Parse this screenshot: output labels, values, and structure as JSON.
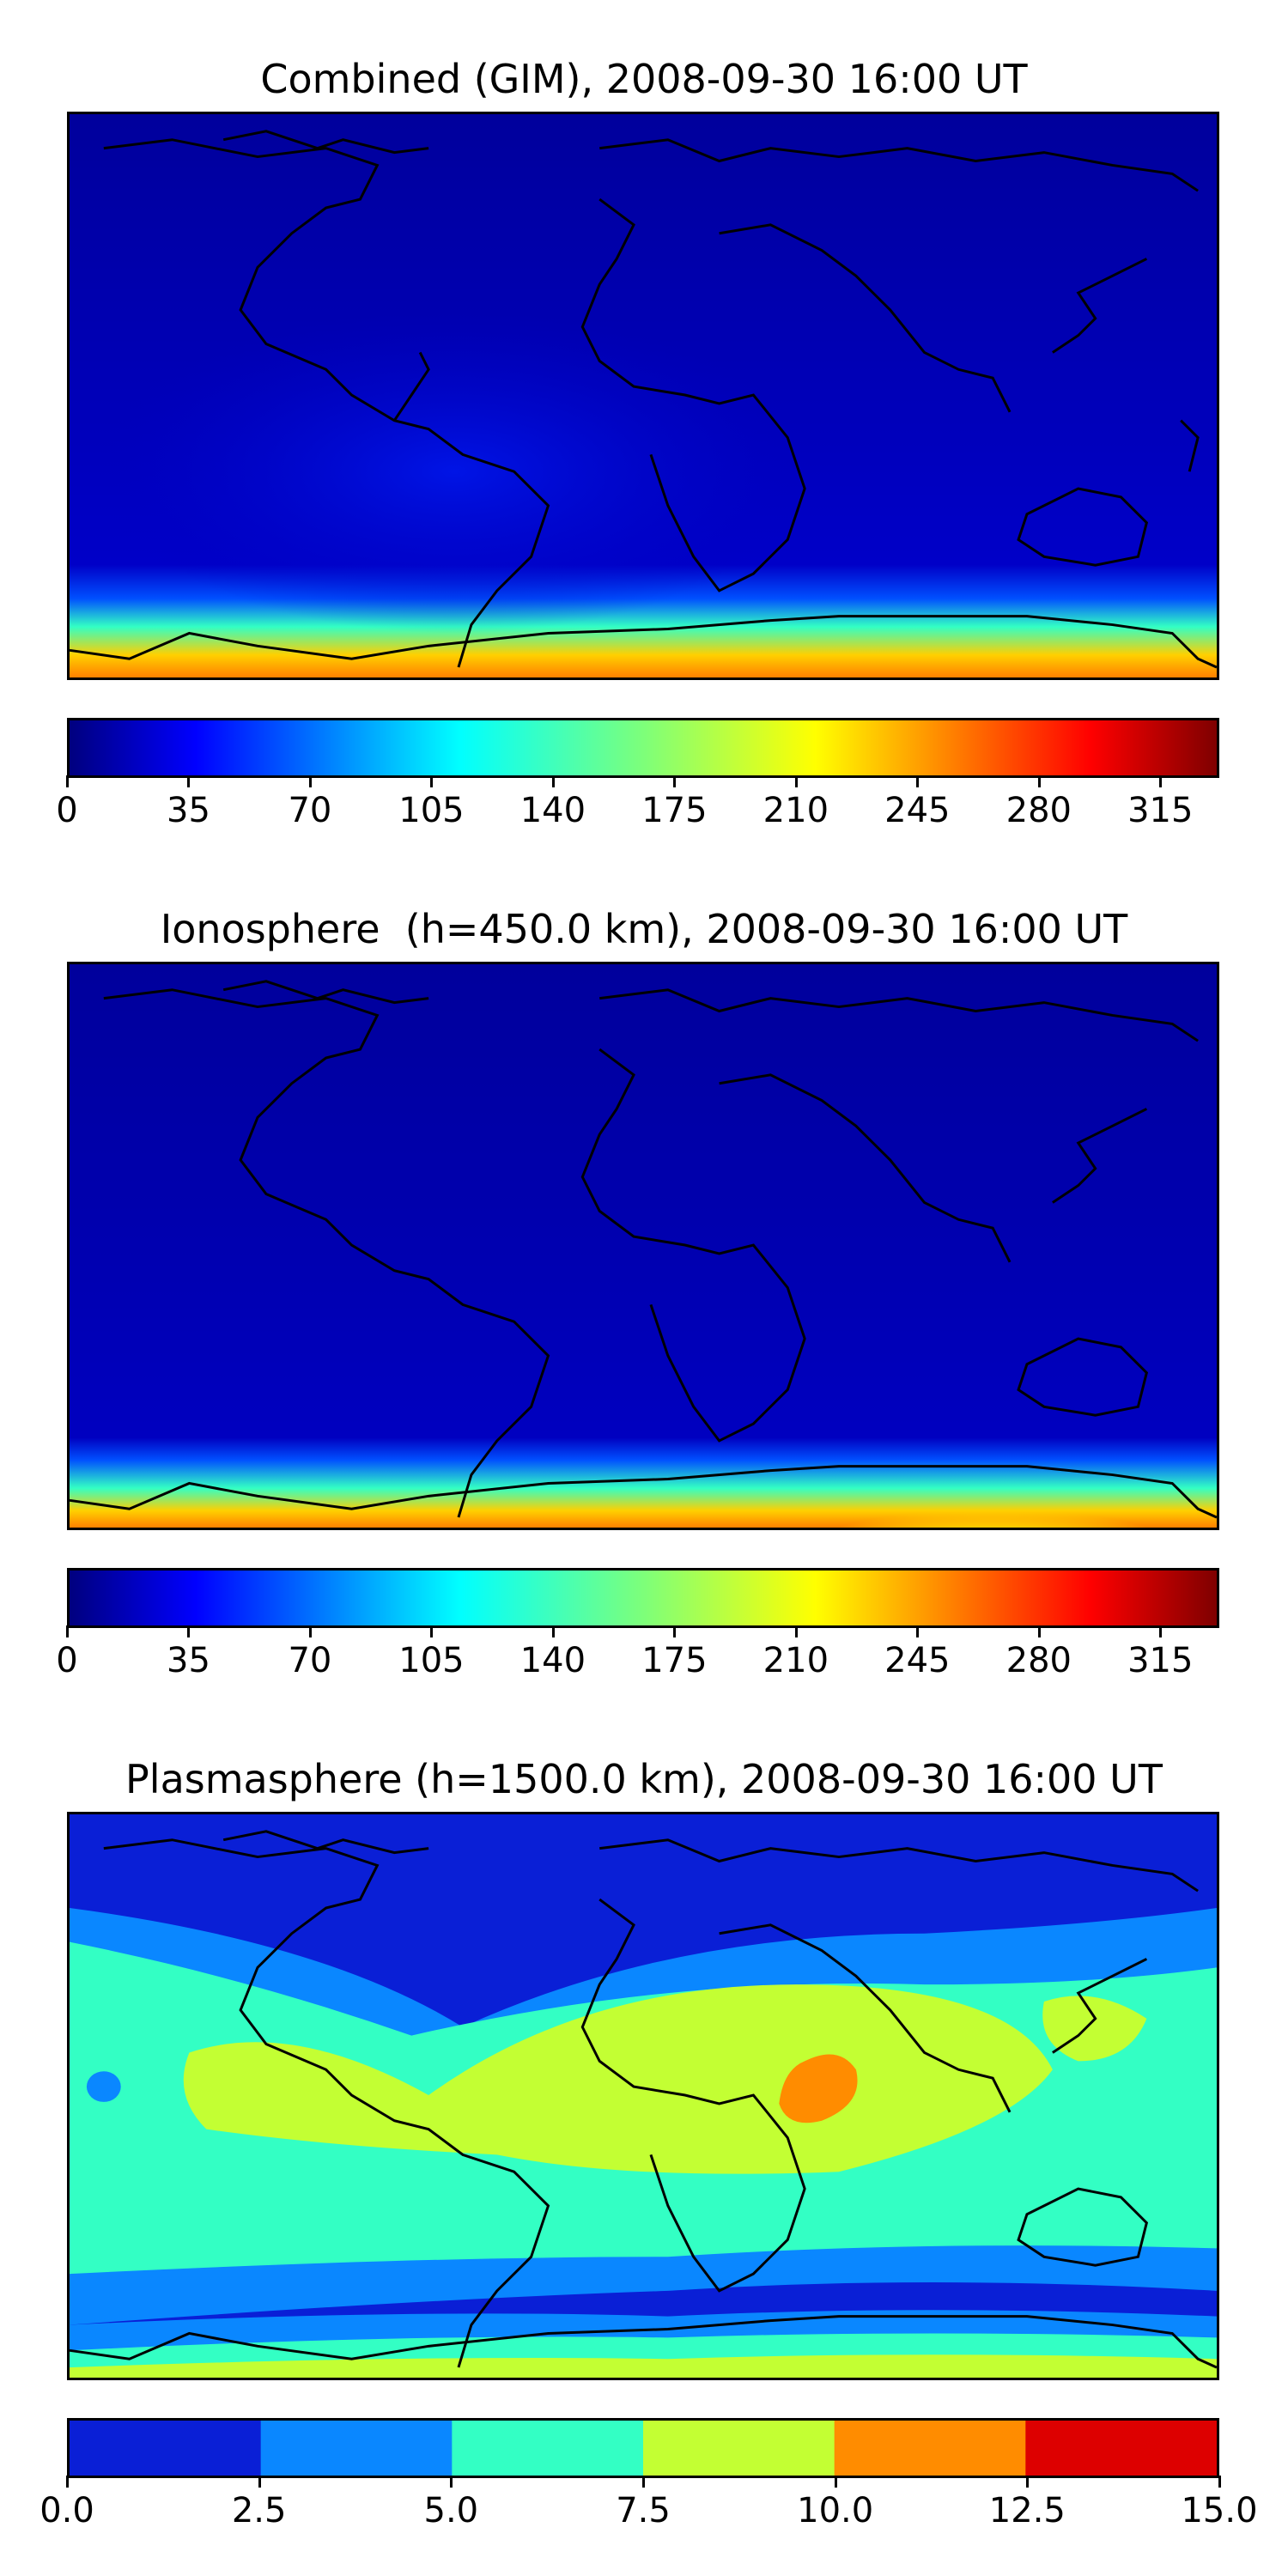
{
  "panels": [
    {
      "title": "Combined (GIM), 2008-09-30 16:00 UT",
      "scale": "continuous",
      "colorbar": {
        "min": 0,
        "max": 332,
        "ticks": [
          "0",
          "35",
          "70",
          "105",
          "140",
          "175",
          "210",
          "245",
          "280",
          "315"
        ],
        "tick_values": [
          0,
          35,
          70,
          105,
          140,
          175,
          210,
          245,
          280,
          315
        ],
        "colormap": "jet"
      }
    },
    {
      "title": "Ionosphere  (h=450.0 km), 2008-09-30 16:00 UT",
      "scale": "continuous",
      "colorbar": {
        "min": 0,
        "max": 332,
        "ticks": [
          "0",
          "35",
          "70",
          "105",
          "140",
          "175",
          "210",
          "245",
          "280",
          "315"
        ],
        "tick_values": [
          0,
          35,
          70,
          105,
          140,
          175,
          210,
          245,
          280,
          315
        ],
        "colormap": "jet"
      }
    },
    {
      "title": "Plasmasphere (h=1500.0 km), 2008-09-30 16:00 UT",
      "scale": "discrete",
      "colorbar": {
        "min": 0,
        "max": 15,
        "ticks": [
          "0.0",
          "2.5",
          "5.0",
          "7.5",
          "10.0",
          "12.5",
          "15.0"
        ],
        "tick_values": [
          0,
          2.5,
          5,
          7.5,
          10,
          12.5,
          15
        ],
        "levels": [
          "#0a1fd6",
          "#0a87ff",
          "#33ffc4",
          "#c3ff33",
          "#ff8c00",
          "#dd0000"
        ]
      }
    }
  ],
  "colors": {
    "ocean_dark": "#00008b",
    "coastline": "#000000"
  }
}
